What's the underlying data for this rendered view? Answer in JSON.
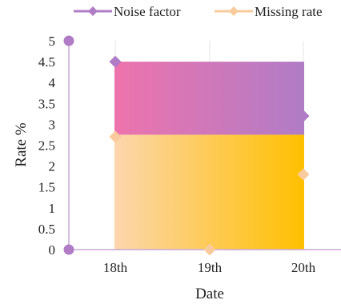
{
  "chart_data": {
    "type": "line",
    "title": "",
    "xlabel": "Date",
    "ylabel": "Rate %",
    "categories": [
      "18th",
      "19th",
      "20th"
    ],
    "ylim": [
      0,
      5
    ],
    "yticks": [
      "0",
      "0.5",
      "1",
      "1.5",
      "2",
      "2.5",
      "3",
      "3.5",
      "4",
      "4.5",
      "5"
    ],
    "grid": "vertical",
    "legend": "top",
    "series": [
      {
        "name": "Noise factor",
        "color": "#b07cc6",
        "marker": "diamond",
        "points": [
          {
            "x": "18th",
            "y": 4.5
          },
          {
            "x": "20th",
            "y": 3.2
          }
        ]
      },
      {
        "name": "Missing rate",
        "color": "#f9cb9c",
        "marker": "diamond",
        "points": [
          {
            "x": "18th",
            "y": 2.7
          },
          {
            "x": "19th",
            "y": 0
          },
          {
            "x": "20th",
            "y": 1.8
          }
        ]
      }
    ],
    "bands": [
      {
        "y0": 2.75,
        "y1": 4.5,
        "from": "18th",
        "to": "20th",
        "gradient": [
          "#ee73ad",
          "#b07cc6"
        ]
      },
      {
        "y0": 0,
        "y1": 2.75,
        "from": "18th",
        "to": "20th",
        "gradient": [
          "#fcd6ad",
          "#ffc000"
        ]
      }
    ],
    "axis_points": [
      {
        "y": 5,
        "color": "#b07cc6"
      },
      {
        "y": 0,
        "color": "#b07cc6"
      }
    ]
  }
}
